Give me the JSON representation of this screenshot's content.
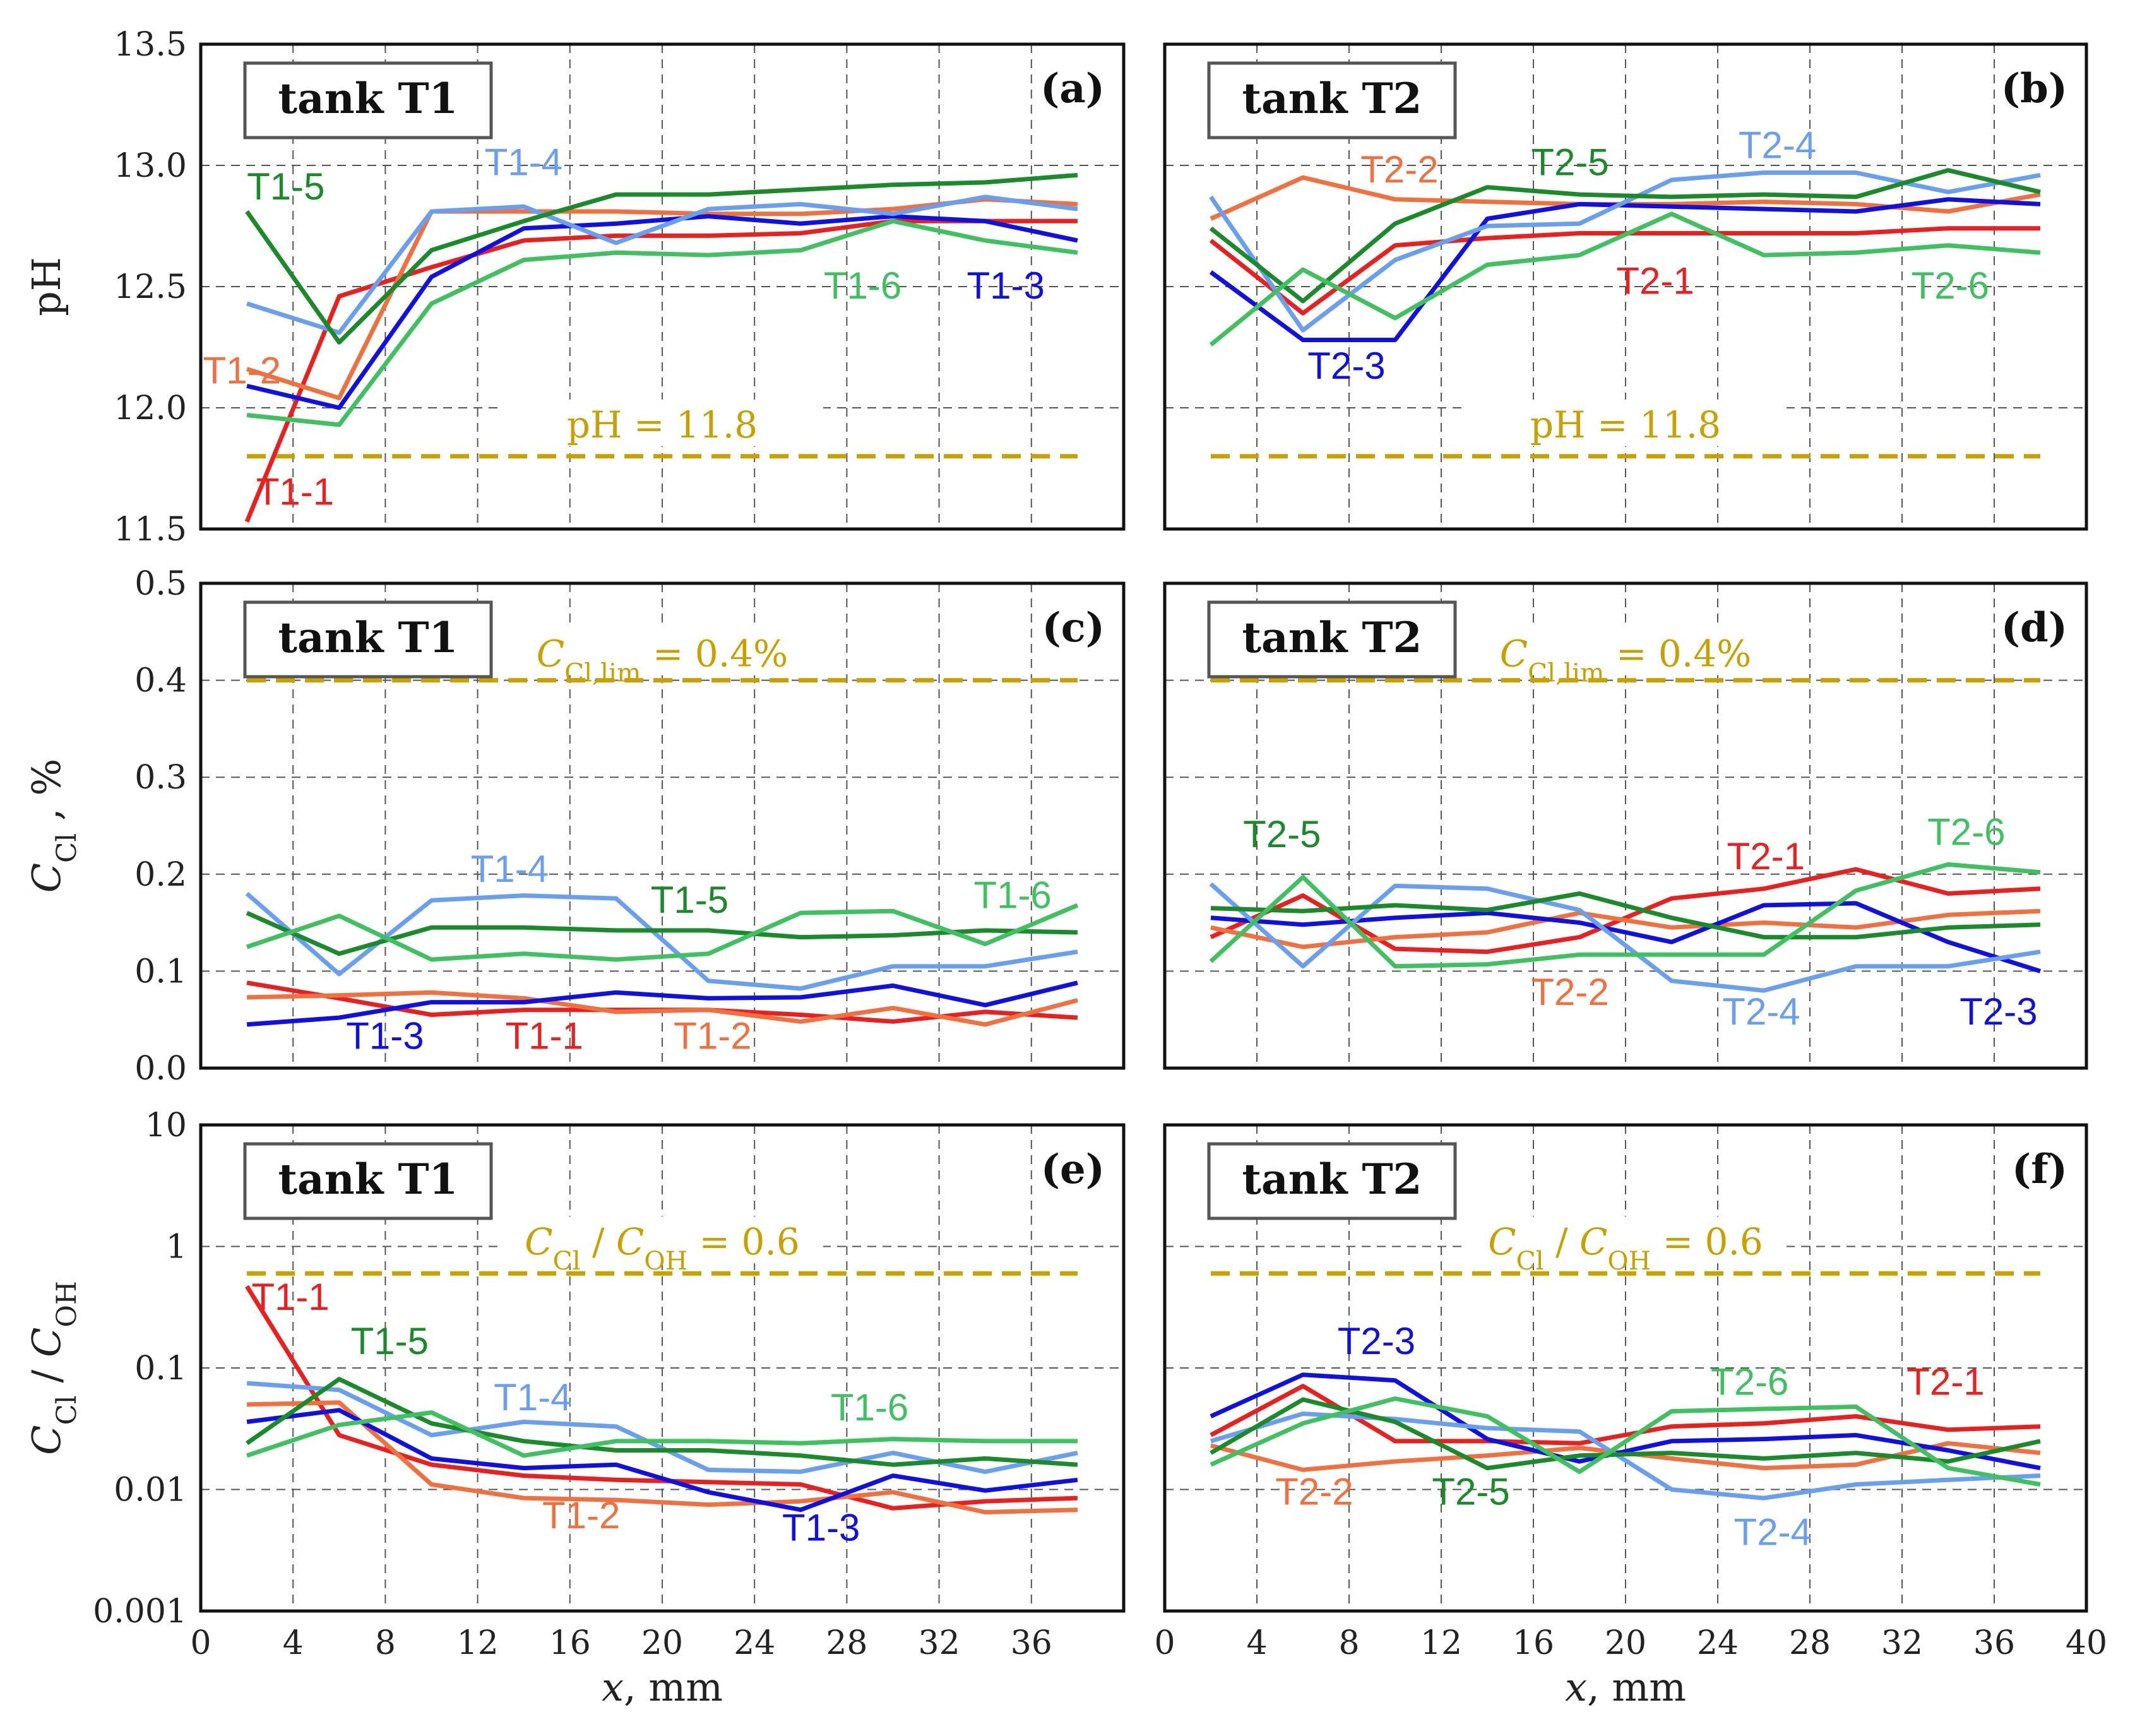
{
  "chart_data": [
    {
      "id": "a",
      "type": "line",
      "panel_label": "(a)",
      "title": "tank T1",
      "xlabel": "",
      "ylabel": "pH",
      "yscale": "linear",
      "xlim": [
        0,
        40
      ],
      "ylim": [
        11.5,
        13.5
      ],
      "xticks": [],
      "yticks": [
        "11.5",
        "12.0",
        "12.5",
        "13.0",
        "13.5"
      ],
      "reference": {
        "label": "pH = 11.8",
        "value": 11.8
      },
      "x": [
        2,
        6,
        10,
        14,
        18,
        22,
        26,
        30,
        34,
        38
      ],
      "series": [
        {
          "name": "T1-1",
          "color": "#e82020",
          "values": [
            11.53,
            12.46,
            12.58,
            12.69,
            12.71,
            12.71,
            12.72,
            12.77,
            12.77,
            12.77
          ]
        },
        {
          "name": "T1-2",
          "color": "#f07040",
          "values": [
            12.16,
            12.04,
            12.81,
            12.81,
            12.81,
            12.8,
            12.8,
            12.82,
            12.86,
            12.84
          ]
        },
        {
          "name": "T1-3",
          "color": "#1010e0",
          "values": [
            12.09,
            12.0,
            12.54,
            12.74,
            12.76,
            12.79,
            12.76,
            12.79,
            12.77,
            12.69
          ]
        },
        {
          "name": "T1-4",
          "color": "#6a9ff0",
          "values": [
            12.43,
            12.31,
            12.81,
            12.83,
            12.68,
            12.82,
            12.84,
            12.8,
            12.87,
            12.82
          ]
        },
        {
          "name": "T1-5",
          "color": "#1a8a2a",
          "values": [
            12.81,
            12.27,
            12.65,
            12.77,
            12.88,
            12.88,
            12.9,
            12.92,
            12.93,
            12.96
          ]
        },
        {
          "name": "T1-6",
          "color": "#40c060",
          "values": [
            11.97,
            11.93,
            12.43,
            12.61,
            12.64,
            12.63,
            12.65,
            12.77,
            12.69,
            12.64
          ]
        }
      ],
      "labels": [
        {
          "text": "T1-1",
          "series": "T1-1",
          "x": 2.4,
          "y": 11.6
        },
        {
          "text": "T1-2",
          "series": "T1-2",
          "x": 0.1,
          "y": 12.1
        },
        {
          "text": "T1-3",
          "series": "T1-3",
          "x": 33.2,
          "y": 12.45
        },
        {
          "text": "T1-4",
          "series": "T1-4",
          "x": 12.3,
          "y": 12.96
        },
        {
          "text": "T1-5",
          "series": "T1-5",
          "x": 2.0,
          "y": 12.86
        },
        {
          "text": "T1-6",
          "series": "T1-6",
          "x": 27.0,
          "y": 12.45
        }
      ]
    },
    {
      "id": "b",
      "type": "line",
      "panel_label": "(b)",
      "title": "tank T2",
      "xlabel": "",
      "ylabel": "",
      "yscale": "linear",
      "xlim": [
        0,
        40
      ],
      "ylim": [
        11.5,
        13.5
      ],
      "xticks": [],
      "yticks": [],
      "reference": {
        "label": "pH = 11.8",
        "value": 11.8
      },
      "x": [
        2,
        6,
        10,
        14,
        18,
        22,
        26,
        30,
        34,
        38
      ],
      "series": [
        {
          "name": "T2-1",
          "color": "#e82020",
          "values": [
            12.69,
            12.39,
            12.67,
            12.7,
            12.72,
            12.72,
            12.72,
            12.72,
            12.74,
            12.74
          ]
        },
        {
          "name": "T2-2",
          "color": "#f07040",
          "values": [
            12.78,
            12.95,
            12.86,
            12.85,
            12.84,
            12.84,
            12.85,
            12.84,
            12.81,
            12.88
          ]
        },
        {
          "name": "T2-3",
          "color": "#1010e0",
          "values": [
            12.56,
            12.28,
            12.28,
            12.78,
            12.84,
            12.83,
            12.82,
            12.81,
            12.86,
            12.84
          ]
        },
        {
          "name": "T2-4",
          "color": "#6a9ff0",
          "values": [
            12.87,
            12.32,
            12.61,
            12.75,
            12.76,
            12.94,
            12.97,
            12.97,
            12.89,
            12.96
          ]
        },
        {
          "name": "T2-5",
          "color": "#1a8a2a",
          "values": [
            12.74,
            12.44,
            12.76,
            12.91,
            12.88,
            12.87,
            12.88,
            12.87,
            12.98,
            12.89
          ]
        },
        {
          "name": "T2-6",
          "color": "#40c060",
          "values": [
            12.26,
            12.57,
            12.37,
            12.59,
            12.63,
            12.8,
            12.63,
            12.64,
            12.67,
            12.64
          ]
        }
      ],
      "labels": [
        {
          "text": "T2-1",
          "series": "T2-1",
          "x": 19.6,
          "y": 12.47
        },
        {
          "text": "T2-2",
          "series": "T2-2",
          "x": 8.5,
          "y": 12.93
        },
        {
          "text": "T2-3",
          "series": "T2-3",
          "x": 6.2,
          "y": 12.12
        },
        {
          "text": "T2-4",
          "series": "T2-4",
          "x": 24.9,
          "y": 13.03
        },
        {
          "text": "T2-5",
          "series": "T2-5",
          "x": 15.9,
          "y": 12.96
        },
        {
          "text": "T2-6",
          "series": "T2-6",
          "x": 32.4,
          "y": 12.45
        }
      ]
    },
    {
      "id": "c",
      "type": "line",
      "panel_label": "(c)",
      "title": "tank T1",
      "xlabel": "",
      "ylabel": "C_Cl , %",
      "yscale": "linear",
      "xlim": [
        0,
        40
      ],
      "ylim": [
        0.0,
        0.5
      ],
      "xticks": [],
      "yticks": [
        "0.0",
        "0.1",
        "0.2",
        "0.3",
        "0.4",
        "0.5"
      ],
      "reference": {
        "label": "C_Cl,lim = 0.4%",
        "value": 0.4
      },
      "x": [
        2,
        6,
        10,
        14,
        18,
        22,
        26,
        30,
        34,
        38
      ],
      "series": [
        {
          "name": "T1-1",
          "color": "#e82020",
          "values": [
            0.088,
            0.072,
            0.055,
            0.06,
            0.06,
            0.06,
            0.055,
            0.048,
            0.058,
            0.052
          ]
        },
        {
          "name": "T1-2",
          "color": "#f07040",
          "values": [
            0.073,
            0.075,
            0.078,
            0.072,
            0.058,
            0.06,
            0.048,
            0.062,
            0.045,
            0.07
          ]
        },
        {
          "name": "T1-3",
          "color": "#1010e0",
          "values": [
            0.045,
            0.052,
            0.068,
            0.068,
            0.078,
            0.072,
            0.073,
            0.085,
            0.065,
            0.088
          ]
        },
        {
          "name": "T1-4",
          "color": "#6a9ff0",
          "values": [
            0.18,
            0.097,
            0.173,
            0.178,
            0.175,
            0.09,
            0.082,
            0.105,
            0.105,
            0.12
          ]
        },
        {
          "name": "T1-5",
          "color": "#1a8a2a",
          "values": [
            0.16,
            0.118,
            0.145,
            0.145,
            0.142,
            0.142,
            0.135,
            0.137,
            0.142,
            0.14
          ]
        },
        {
          "name": "T1-6",
          "color": "#40c060",
          "values": [
            0.125,
            0.157,
            0.112,
            0.118,
            0.112,
            0.118,
            0.16,
            0.162,
            0.128,
            0.168
          ]
        }
      ],
      "labels": [
        {
          "text": "T1-1",
          "series": "T1-1",
          "x": 13.2,
          "y": 0.02
        },
        {
          "text": "T1-2",
          "series": "T1-2",
          "x": 20.5,
          "y": 0.02
        },
        {
          "text": "T1-3",
          "series": "T1-3",
          "x": 6.3,
          "y": 0.02
        },
        {
          "text": "T1-4",
          "series": "T1-4",
          "x": 11.7,
          "y": 0.192
        },
        {
          "text": "T1-5",
          "series": "T1-5",
          "x": 19.5,
          "y": 0.16
        },
        {
          "text": "T1-6",
          "series": "T1-6",
          "x": 33.5,
          "y": 0.165
        }
      ]
    },
    {
      "id": "d",
      "type": "line",
      "panel_label": "(d)",
      "title": "tank T2",
      "xlabel": "",
      "ylabel": "",
      "yscale": "linear",
      "xlim": [
        0,
        40
      ],
      "ylim": [
        0.0,
        0.5
      ],
      "xticks": [],
      "yticks": [],
      "reference": {
        "label": "C_Cl,lim = 0.4%",
        "value": 0.4
      },
      "x": [
        2,
        6,
        10,
        14,
        18,
        22,
        26,
        30,
        34,
        38
      ],
      "series": [
        {
          "name": "T2-1",
          "color": "#e82020",
          "values": [
            0.135,
            0.178,
            0.123,
            0.12,
            0.135,
            0.175,
            0.185,
            0.205,
            0.18,
            0.185
          ]
        },
        {
          "name": "T2-2",
          "color": "#f07040",
          "values": [
            0.145,
            0.125,
            0.135,
            0.14,
            0.16,
            0.145,
            0.15,
            0.145,
            0.158,
            0.162
          ]
        },
        {
          "name": "T2-3",
          "color": "#1010e0",
          "values": [
            0.155,
            0.148,
            0.155,
            0.16,
            0.15,
            0.13,
            0.168,
            0.17,
            0.13,
            0.1
          ]
        },
        {
          "name": "T2-4",
          "color": "#6a9ff0",
          "values": [
            0.19,
            0.105,
            0.188,
            0.185,
            0.163,
            0.09,
            0.08,
            0.105,
            0.105,
            0.12
          ]
        },
        {
          "name": "T2-5",
          "color": "#1a8a2a",
          "values": [
            0.165,
            0.162,
            0.168,
            0.163,
            0.18,
            0.155,
            0.135,
            0.135,
            0.145,
            0.148
          ]
        },
        {
          "name": "T2-6",
          "color": "#40c060",
          "values": [
            0.11,
            0.197,
            0.105,
            0.107,
            0.117,
            0.117,
            0.117,
            0.183,
            0.21,
            0.202
          ]
        }
      ],
      "labels": [
        {
          "text": "T2-1",
          "series": "T2-1",
          "x": 24.4,
          "y": 0.205
        },
        {
          "text": "T2-2",
          "series": "T2-2",
          "x": 15.9,
          "y": 0.065
        },
        {
          "text": "T2-3",
          "series": "T2-3",
          "x": 34.5,
          "y": 0.045
        },
        {
          "text": "T2-4",
          "series": "T2-4",
          "x": 24.2,
          "y": 0.045
        },
        {
          "text": "T2-5",
          "series": "T2-5",
          "x": 3.4,
          "y": 0.228
        },
        {
          "text": "T2-6",
          "series": "T2-6",
          "x": 33.1,
          "y": 0.23
        }
      ]
    },
    {
      "id": "e",
      "type": "line",
      "panel_label": "(e)",
      "title": "tank T1",
      "xlabel": "x, mm",
      "ylabel": "C_Cl / C_OH",
      "yscale": "log",
      "xlim": [
        0,
        40
      ],
      "ylim": [
        0.001,
        10
      ],
      "xticks": [
        "0",
        "4",
        "8",
        "12",
        "16",
        "20",
        "24",
        "28",
        "32",
        "36"
      ],
      "yticks": [
        "0.001",
        "0.01",
        "0.1",
        "1",
        "10"
      ],
      "reference": {
        "label": "C_Cl / C_OH = 0.6",
        "value": 0.6
      },
      "x": [
        2,
        6,
        10,
        14,
        18,
        22,
        26,
        30,
        34,
        38
      ],
      "series": [
        {
          "name": "T1-1",
          "color": "#e82020",
          "values": [
            0.47,
            0.028,
            0.016,
            0.013,
            0.012,
            0.0115,
            0.011,
            0.007,
            0.008,
            0.0085
          ]
        },
        {
          "name": "T1-2",
          "color": "#f07040",
          "values": [
            0.05,
            0.052,
            0.011,
            0.0085,
            0.0082,
            0.0075,
            0.008,
            0.0095,
            0.0065,
            0.0068
          ]
        },
        {
          "name": "T1-3",
          "color": "#1010e0",
          "values": [
            0.036,
            0.045,
            0.018,
            0.015,
            0.016,
            0.0095,
            0.0068,
            0.013,
            0.0098,
            0.012
          ]
        },
        {
          "name": "T1-4",
          "color": "#6a9ff0",
          "values": [
            0.075,
            0.066,
            0.028,
            0.036,
            0.033,
            0.0145,
            0.014,
            0.02,
            0.014,
            0.02
          ]
        },
        {
          "name": "T1-5",
          "color": "#1a8a2a",
          "values": [
            0.024,
            0.081,
            0.035,
            0.025,
            0.021,
            0.021,
            0.019,
            0.016,
            0.018,
            0.016
          ]
        },
        {
          "name": "T1-6",
          "color": "#40c060",
          "values": [
            0.019,
            0.034,
            0.043,
            0.019,
            0.025,
            0.025,
            0.024,
            0.026,
            0.025,
            0.025
          ]
        }
      ],
      "labels": [
        {
          "text": "T1-1",
          "series": "T1-1",
          "x": 2.2,
          "y": 0.3
        },
        {
          "text": "T1-2",
          "series": "T1-2",
          "x": 14.8,
          "y": 0.0048
        },
        {
          "text": "T1-3",
          "series": "T1-3",
          "x": 25.2,
          "y": 0.0038
        },
        {
          "text": "T1-4",
          "series": "T1-4",
          "x": 12.7,
          "y": 0.045
        },
        {
          "text": "T1-5",
          "series": "T1-5",
          "x": 6.5,
          "y": 0.13
        },
        {
          "text": "T1-6",
          "series": "T1-6",
          "x": 27.3,
          "y": 0.037
        }
      ]
    },
    {
      "id": "f",
      "type": "line",
      "panel_label": "(f)",
      "title": "tank T2",
      "xlabel": "x, mm",
      "ylabel": "",
      "yscale": "log",
      "xlim": [
        0,
        40
      ],
      "ylim": [
        0.001,
        10
      ],
      "xticks": [
        "0",
        "4",
        "8",
        "12",
        "16",
        "20",
        "24",
        "28",
        "32",
        "36",
        "40"
      ],
      "yticks": [],
      "reference": {
        "label": "C_Cl / C_OH = 0.6",
        "value": 0.6
      },
      "x": [
        2,
        6,
        10,
        14,
        18,
        22,
        26,
        30,
        34,
        38
      ],
      "series": [
        {
          "name": "T2-1",
          "color": "#e82020",
          "values": [
            0.028,
            0.071,
            0.025,
            0.025,
            0.024,
            0.033,
            0.035,
            0.04,
            0.031,
            0.033
          ]
        },
        {
          "name": "T2-2",
          "color": "#f07040",
          "values": [
            0.023,
            0.0145,
            0.017,
            0.019,
            0.022,
            0.018,
            0.015,
            0.016,
            0.024,
            0.02
          ]
        },
        {
          "name": "T2-3",
          "color": "#1010e0",
          "values": [
            0.04,
            0.088,
            0.079,
            0.026,
            0.017,
            0.025,
            0.026,
            0.028,
            0.021,
            0.015
          ]
        },
        {
          "name": "T2-4",
          "color": "#6a9ff0",
          "values": [
            0.025,
            0.042,
            0.038,
            0.032,
            0.03,
            0.01,
            0.0085,
            0.011,
            0.012,
            0.013
          ]
        },
        {
          "name": "T2-5",
          "color": "#1a8a2a",
          "values": [
            0.02,
            0.055,
            0.036,
            0.015,
            0.019,
            0.02,
            0.018,
            0.02,
            0.017,
            0.025
          ]
        },
        {
          "name": "T2-6",
          "color": "#40c060",
          "values": [
            0.016,
            0.035,
            0.056,
            0.04,
            0.014,
            0.044,
            0.046,
            0.048,
            0.015,
            0.011
          ]
        }
      ],
      "labels": [
        {
          "text": "T2-1",
          "series": "T2-1",
          "x": 32.2,
          "y": 0.06
        },
        {
          "text": "T2-2",
          "series": "T2-2",
          "x": 4.8,
          "y": 0.0075
        },
        {
          "text": "T2-3",
          "series": "T2-3",
          "x": 7.5,
          "y": 0.13
        },
        {
          "text": "T2-4",
          "series": "T2-4",
          "x": 24.7,
          "y": 0.0035
        },
        {
          "text": "T2-5",
          "series": "T2-5",
          "x": 11.6,
          "y": 0.0075
        },
        {
          "text": "T2-6",
          "series": "T2-6",
          "x": 23.7,
          "y": 0.06
        }
      ]
    }
  ]
}
